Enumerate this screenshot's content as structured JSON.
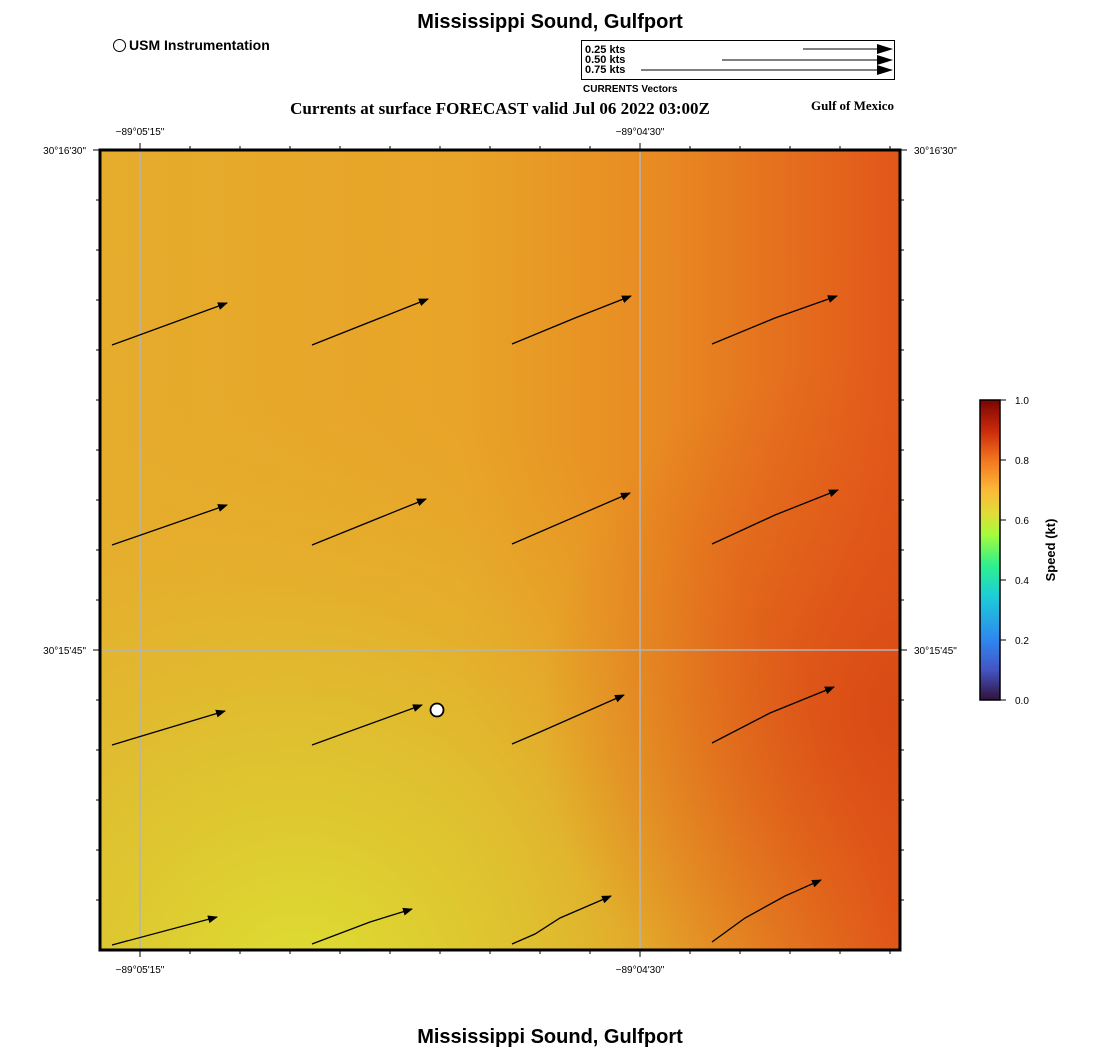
{
  "title": "Mississippi Sound, Gulfport",
  "subtitle": "Currents at surface FORECAST valid Jul 06 2022 03:00Z",
  "region": "Gulf of Mexico",
  "station_legend": "USM Instrumentation",
  "vector_legend": {
    "rows": [
      "0.25 kts",
      "0.50 kts",
      "0.75 kts"
    ],
    "caption": "CURRENTS Vectors"
  },
  "axes": {
    "lon_labels": [
      "−89°05'15\"",
      "−89°04'30\""
    ],
    "lat_labels": [
      "30°16'30\"",
      "30°15'45\""
    ]
  },
  "colorbar": {
    "title": "Speed (kt)",
    "ticks": [
      "1.0",
      "0.8",
      "0.6",
      "0.4",
      "0.2",
      "0.0"
    ]
  },
  "colors": {
    "speed_low": "#dcdc32",
    "speed_mid": "#e8a128",
    "speed_high": "#e05016"
  }
}
